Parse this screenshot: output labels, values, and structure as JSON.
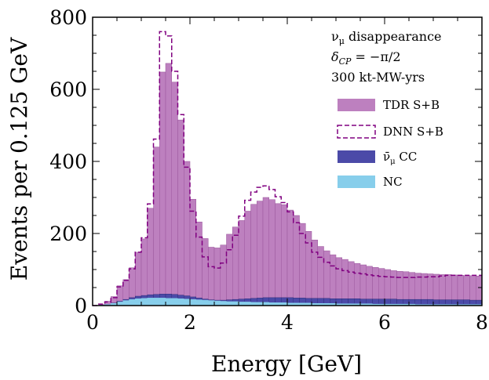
{
  "chart_data": {
    "type": "histogram",
    "xlabel": "Energy [GeV]",
    "ylabel": "Events per 0.125 GeV",
    "xlim": [
      0,
      8
    ],
    "ylim": [
      0,
      800
    ],
    "xticks": [
      0,
      2,
      4,
      6,
      8
    ],
    "yticks": [
      0,
      200,
      400,
      600,
      800
    ],
    "xtick_labels": [
      "0",
      "2",
      "4",
      "6",
      "8"
    ],
    "ytick_labels": [
      "0",
      "200",
      "400",
      "600",
      "800"
    ],
    "grid": false,
    "legend_position": "right",
    "annotations": [
      "νμ disappearance",
      "δCP = −π/2",
      "300 kt-MW-yrs"
    ],
    "bin_width": 0.125,
    "x_start": 0,
    "series": [
      {
        "name": "TDR S+B",
        "style": "filled",
        "color": "#bd80bf",
        "edge_color": "#9a569c",
        "values": [
          0,
          3,
          12,
          25,
          55,
          72,
          105,
          148,
          185,
          270,
          440,
          648,
          672,
          620,
          515,
          400,
          295,
          232,
          186,
          162,
          160,
          168,
          198,
          218,
          236,
          262,
          281,
          290,
          300,
          294,
          283,
          280,
          265,
          250,
          228,
          206,
          182,
          164,
          152,
          141,
          133,
          128,
          122,
          117,
          113,
          109,
          106,
          103,
          100,
          97,
          95,
          94,
          92,
          90,
          89,
          88,
          87,
          86,
          86,
          85,
          84,
          83,
          83,
          82
        ]
      },
      {
        "name": "DNN S+B",
        "style": "dashed",
        "color": "#800080",
        "values": [
          0,
          4,
          10,
          22,
          52,
          70,
          102,
          148,
          188,
          282,
          462,
          760,
          748,
          650,
          530,
          384,
          262,
          190,
          135,
          108,
          104,
          118,
          155,
          195,
          248,
          292,
          315,
          328,
          332,
          322,
          302,
          286,
          260,
          230,
          200,
          174,
          148,
          134,
          120,
          110,
          102,
          97,
          93,
          90,
          88,
          85,
          83,
          81,
          80,
          79,
          78,
          78,
          78,
          79,
          79,
          80,
          80,
          82,
          84,
          84,
          84,
          84,
          84,
          84
        ]
      },
      {
        "name": "ν̄μ CC",
        "style": "filled",
        "color": "#4b4aa8",
        "edge_color": "#2e2d7a",
        "values": [
          0,
          1,
          3,
          7,
          12,
          17,
          22,
          26,
          28,
          30,
          31,
          32,
          32,
          31,
          29,
          27,
          24,
          21,
          18,
          16,
          15,
          15,
          16,
          17,
          18,
          19,
          20,
          21,
          22,
          22,
          22,
          22,
          22,
          21,
          21,
          20,
          20,
          20,
          20,
          19,
          19,
          19,
          19,
          19,
          18,
          18,
          18,
          18,
          18,
          18,
          17,
          17,
          17,
          17,
          17,
          17,
          16,
          16,
          16,
          16,
          16,
          16,
          15,
          15
        ]
      },
      {
        "name": "NC",
        "style": "filled",
        "color": "#87ceeb",
        "edge_color": "#87ceeb",
        "values": [
          0,
          1,
          3,
          6,
          10,
          14,
          17,
          19,
          20,
          21,
          21,
          21,
          20,
          20,
          19,
          18,
          17,
          16,
          15,
          14,
          13,
          12,
          11,
          11,
          10,
          10,
          9,
          9,
          9,
          8,
          8,
          8,
          7,
          7,
          7,
          7,
          6,
          6,
          6,
          6,
          5,
          5,
          5,
          5,
          5,
          5,
          4,
          4,
          4,
          4,
          4,
          4,
          4,
          3,
          3,
          3,
          3,
          3,
          3,
          3,
          3,
          3,
          3,
          3
        ]
      }
    ]
  }
}
